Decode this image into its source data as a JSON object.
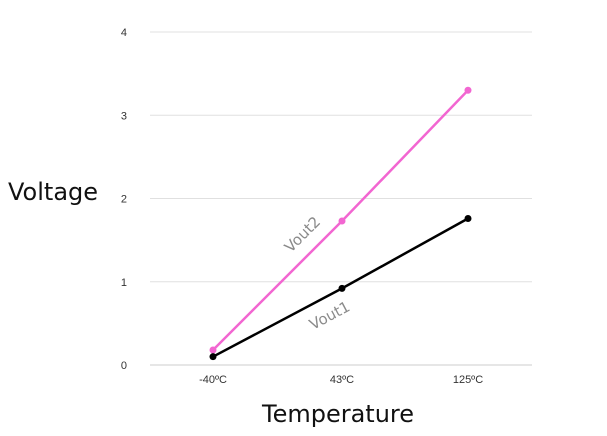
{
  "chart_data": {
    "type": "line",
    "xlabel": "Temperature",
    "ylabel": "Voltage",
    "categories": [
      "-40ºC",
      "43ºC",
      "125ºC"
    ],
    "ylim": [
      0,
      4
    ],
    "yticks": [
      "0",
      "1",
      "2",
      "3",
      "4"
    ],
    "grid": true,
    "legend": "none",
    "series": [
      {
        "name": "Vout2",
        "values": [
          0.18,
          1.73,
          3.3
        ],
        "color": "#f266d1"
      },
      {
        "name": "Vout1",
        "values": [
          0.1,
          0.92,
          1.76
        ],
        "color": "#000000"
      }
    ],
    "colors": {
      "grid": "#e0e0e0",
      "axis": "#cccccc"
    }
  }
}
